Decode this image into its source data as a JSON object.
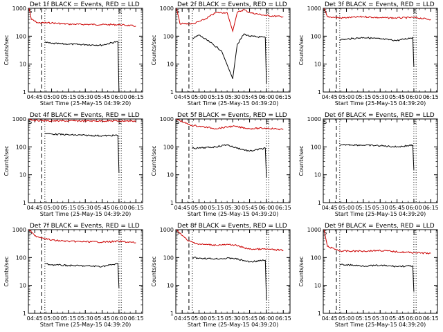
{
  "chart_data": [
    {
      "type": "line",
      "title": "Det 1f BLACK = Events, RED = LLD",
      "xlabel": "Start Time (25-May-15 04:39:20)",
      "ylabel": "Counts/sec",
      "xticks": [
        "04:45",
        "05:00",
        "05:15",
        "05:30",
        "05:45",
        "06:00",
        "06:15"
      ],
      "yticks": [
        "1",
        "10",
        "100",
        "1000"
      ],
      "ylog": true,
      "ylim": [
        1,
        1000
      ],
      "markers": {
        "S": "04:40",
        "E": "06:00"
      },
      "dashed_at": "04:51",
      "dotted_at": [
        "04:54",
        "06:00",
        "06:02"
      ],
      "series": [
        {
          "color": "#cc0000",
          "points": [
            [
              "04:40",
              1000
            ],
            [
              "04:42",
              400
            ],
            [
              "04:48",
              300
            ],
            [
              "05:00",
              300
            ],
            [
              "05:15",
              270
            ],
            [
              "05:30",
              265
            ],
            [
              "05:45",
              260
            ],
            [
              "06:00",
              260
            ],
            [
              "06:15",
              230
            ]
          ]
        },
        {
          "color": "#000000",
          "points": [
            [
              "04:54",
              60
            ],
            [
              "05:00",
              55
            ],
            [
              "05:15",
              52
            ],
            [
              "05:30",
              50
            ],
            [
              "05:45",
              48
            ],
            [
              "05:59",
              65
            ],
            [
              "06:00",
              1
            ]
          ]
        }
      ]
    },
    {
      "type": "line",
      "title": "Det 2f BLACK = Events, RED = LLD",
      "xlabel": "Start Time (25-May-15 04:39:20)",
      "ylabel": "Counts/sec",
      "xticks": [
        "04:45",
        "05:00",
        "05:15",
        "05:30",
        "05:45",
        "06:00",
        "06:15"
      ],
      "yticks": [
        "1",
        "10",
        "100",
        "1000"
      ],
      "ylog": true,
      "ylim": [
        1,
        1000
      ],
      "markers": {
        "S": "04:40",
        "E": "06:00"
      },
      "dashed_at": "04:51",
      "dotted_at": [
        "04:54",
        "06:00",
        "06:02"
      ],
      "series": [
        {
          "color": "#cc0000",
          "points": [
            [
              "04:40",
              1000
            ],
            [
              "04:43",
              280
            ],
            [
              "04:55",
              280
            ],
            [
              "05:05",
              400
            ],
            [
              "05:15",
              700
            ],
            [
              "05:25",
              700
            ],
            [
              "05:30",
              150
            ],
            [
              "05:34",
              700
            ],
            [
              "05:40",
              900
            ],
            [
              "05:45",
              700
            ],
            [
              "06:00",
              550
            ],
            [
              "06:15",
              500
            ]
          ]
        },
        {
          "color": "#000000",
          "points": [
            [
              "04:54",
              80
            ],
            [
              "05:00",
              110
            ],
            [
              "05:10",
              60
            ],
            [
              "05:20",
              30
            ],
            [
              "05:30",
              3
            ],
            [
              "05:34",
              50
            ],
            [
              "05:40",
              120
            ],
            [
              "05:45",
              100
            ],
            [
              "05:59",
              90
            ],
            [
              "06:00",
              2
            ]
          ]
        }
      ]
    },
    {
      "type": "line",
      "title": "Det 3f BLACK = Events, RED = LLD",
      "xlabel": "Start Time (25-May-15 04:39:20)",
      "ylabel": "Counts/sec",
      "xticks": [
        "04:45",
        "05:00",
        "05:15",
        "05:30",
        "05:45",
        "06:00",
        "06:15"
      ],
      "yticks": [
        "1",
        "10",
        "100",
        "1000"
      ],
      "ylog": true,
      "ylim": [
        1,
        1000
      ],
      "markers": {
        "S": "04:40",
        "E": "06:00"
      },
      "dashed_at": "04:51",
      "dotted_at": [
        "04:54",
        "06:00",
        "06:02"
      ],
      "series": [
        {
          "color": "#cc0000",
          "points": [
            [
              "04:40",
              1000
            ],
            [
              "04:43",
              500
            ],
            [
              "04:55",
              450
            ],
            [
              "05:15",
              500
            ],
            [
              "05:30",
              460
            ],
            [
              "05:45",
              450
            ],
            [
              "06:00",
              470
            ],
            [
              "06:15",
              400
            ]
          ]
        },
        {
          "color": "#000000",
          "points": [
            [
              "04:54",
              75
            ],
            [
              "05:00",
              78
            ],
            [
              "05:15",
              90
            ],
            [
              "05:30",
              80
            ],
            [
              "05:45",
              70
            ],
            [
              "05:59",
              90
            ],
            [
              "06:00",
              8
            ]
          ]
        }
      ]
    },
    {
      "type": "line",
      "title": "Det 4f BLACK = Events, RED = LLD",
      "xlabel": "Start Time (25-May-15 04:39:20)",
      "ylabel": "Counts/sec",
      "xticks": [
        "04:45",
        "05:00",
        "05:15",
        "05:30",
        "05:45",
        "06:00",
        "06:15"
      ],
      "yticks": [
        "1",
        "10",
        "100",
        "1000"
      ],
      "ylog": true,
      "ylim": [
        1,
        1000
      ],
      "markers": {
        "S": "04:40",
        "E": "06:00"
      },
      "dashed_at": "04:51",
      "dotted_at": [
        "04:54",
        "06:00",
        "06:02"
      ],
      "series": [
        {
          "color": "#cc0000",
          "points": [
            [
              "04:40",
              1000
            ],
            [
              "04:44",
              900
            ],
            [
              "05:00",
              850
            ],
            [
              "05:15",
              850
            ],
            [
              "05:30",
              850
            ],
            [
              "05:45",
              850
            ],
            [
              "06:00",
              850
            ],
            [
              "06:15",
              850
            ]
          ]
        },
        {
          "color": "#000000",
          "points": [
            [
              "04:54",
              300
            ],
            [
              "05:00",
              290
            ],
            [
              "05:15",
              270
            ],
            [
              "05:30",
              260
            ],
            [
              "05:45",
              250
            ],
            [
              "05:59",
              260
            ],
            [
              "06:00",
              12
            ]
          ]
        }
      ]
    },
    {
      "type": "line",
      "title": "Det 5f BLACK = Events, RED = LLD",
      "xlabel": "Start Time (25-May-15 04:39:20)",
      "ylabel": "Counts/sec",
      "xticks": [
        "04:45",
        "05:00",
        "05:15",
        "05:30",
        "05:45",
        "06:00",
        "06:15"
      ],
      "yticks": [
        "1",
        "10",
        "100",
        "1000"
      ],
      "ylog": true,
      "ylim": [
        1,
        1000
      ],
      "markers": {
        "S": "04:40",
        "E": "06:00"
      },
      "dashed_at": "04:51",
      "dotted_at": [
        "04:54",
        "06:00",
        "06:02"
      ],
      "series": [
        {
          "color": "#cc0000",
          "points": [
            [
              "04:40",
              1000
            ],
            [
              "04:52",
              600
            ],
            [
              "05:00",
              550
            ],
            [
              "05:15",
              450
            ],
            [
              "05:30",
              550
            ],
            [
              "05:45",
              450
            ],
            [
              "06:00",
              470
            ],
            [
              "06:15",
              420
            ]
          ]
        },
        {
          "color": "#000000",
          "points": [
            [
              "04:54",
              90
            ],
            [
              "05:00",
              90
            ],
            [
              "05:15",
              100
            ],
            [
              "05:25",
              120
            ],
            [
              "05:30",
              100
            ],
            [
              "05:45",
              70
            ],
            [
              "05:59",
              90
            ],
            [
              "06:00",
              8
            ]
          ]
        }
      ]
    },
    {
      "type": "line",
      "title": "Det 6f BLACK = Events, RED = LLD",
      "xlabel": "Start Time (25-May-15 04:39:20)",
      "ylabel": "Counts/sec",
      "xticks": [
        "04:45",
        "05:00",
        "05:15",
        "05:30",
        "05:45",
        "06:00",
        "06:15"
      ],
      "yticks": [
        "1",
        "10",
        "100",
        "1000"
      ],
      "ylog": true,
      "ylim": [
        1,
        1000
      ],
      "markers": {
        "S": "04:40",
        "E": "06:00"
      },
      "dashed_at": "04:51",
      "dotted_at": [
        "04:54",
        "06:00",
        "06:02"
      ],
      "series": [
        {
          "color": "#000000",
          "points": [
            [
              "04:54",
              110
            ],
            [
              "05:00",
              120
            ],
            [
              "05:15",
              115
            ],
            [
              "05:30",
              110
            ],
            [
              "05:45",
              100
            ],
            [
              "05:59",
              115
            ],
            [
              "06:00",
              15
            ]
          ]
        }
      ]
    },
    {
      "type": "line",
      "title": "Det 7f BLACK = Events, RED = LLD",
      "xlabel": "Start Time (25-May-15 04:39:20)",
      "ylabel": "Counts/sec",
      "xticks": [
        "04:45",
        "05:00",
        "05:15",
        "05:30",
        "05:45",
        "06:00",
        "06:15"
      ],
      "yticks": [
        "1",
        "10",
        "100",
        "1000"
      ],
      "ylog": true,
      "ylim": [
        1,
        1000
      ],
      "markers": {
        "S": "04:40",
        "E": "06:00"
      },
      "dashed_at": "04:51",
      "dotted_at": [
        "04:54",
        "06:00",
        "06:02"
      ],
      "series": [
        {
          "color": "#cc0000",
          "points": [
            [
              "04:40",
              1000
            ],
            [
              "04:45",
              600
            ],
            [
              "05:00",
              420
            ],
            [
              "05:15",
              380
            ],
            [
              "05:30",
              370
            ],
            [
              "05:45",
              360
            ],
            [
              "06:00",
              380
            ],
            [
              "06:15",
              340
            ]
          ]
        },
        {
          "color": "#000000",
          "points": [
            [
              "04:54",
              60
            ],
            [
              "05:00",
              55
            ],
            [
              "05:15",
              52
            ],
            [
              "05:30",
              50
            ],
            [
              "05:45",
              48
            ],
            [
              "05:59",
              60
            ],
            [
              "06:00",
              8
            ]
          ]
        }
      ]
    },
    {
      "type": "line",
      "title": "Det 8f BLACK = Events, RED = LLD",
      "xlabel": "Start Time (25-May-15 04:39:20)",
      "ylabel": "Counts/sec",
      "xticks": [
        "04:45",
        "05:00",
        "05:15",
        "05:30",
        "05:45",
        "06:00",
        "06:15"
      ],
      "yticks": [
        "1",
        "10",
        "100",
        "1000"
      ],
      "ylog": true,
      "ylim": [
        1,
        1000
      ],
      "markers": {
        "S": "04:40",
        "E": "06:00"
      },
      "dashed_at": "04:51",
      "dotted_at": [
        "04:54",
        "06:00",
        "06:02"
      ],
      "series": [
        {
          "color": "#cc0000",
          "points": [
            [
              "04:40",
              1000
            ],
            [
              "04:50",
              400
            ],
            [
              "05:00",
              300
            ],
            [
              "05:15",
              280
            ],
            [
              "05:30",
              290
            ],
            [
              "05:45",
              200
            ],
            [
              "06:00",
              200
            ],
            [
              "06:15",
              180
            ]
          ]
        },
        {
          "color": "#000000",
          "points": [
            [
              "04:54",
              100
            ],
            [
              "05:00",
              95
            ],
            [
              "05:15",
              90
            ],
            [
              "05:30",
              95
            ],
            [
              "05:45",
              70
            ],
            [
              "05:59",
              80
            ],
            [
              "06:00",
              3
            ]
          ]
        }
      ]
    },
    {
      "type": "line",
      "title": "Det 9f BLACK = Events, RED = LLD",
      "xlabel": "Start Time (25-May-15 04:39:20)",
      "ylabel": "Counts/sec",
      "xticks": [
        "04:45",
        "05:00",
        "05:15",
        "05:30",
        "05:45",
        "06:00",
        "06:15"
      ],
      "yticks": [
        "1",
        "10",
        "100",
        "1000"
      ],
      "ylog": true,
      "ylim": [
        1,
        1000
      ],
      "markers": {
        "S": "04:40",
        "E": "06:00"
      },
      "dashed_at": "04:51",
      "dotted_at": [
        "04:54",
        "06:00",
        "06:02"
      ],
      "series": [
        {
          "color": "#cc0000",
          "points": [
            [
              "04:40",
              1000
            ],
            [
              "04:43",
              250
            ],
            [
              "04:55",
              170
            ],
            [
              "05:15",
              170
            ],
            [
              "05:30",
              180
            ],
            [
              "05:45",
              160
            ],
            [
              "06:00",
              150
            ],
            [
              "06:15",
              140
            ]
          ]
        },
        {
          "color": "#000000",
          "points": [
            [
              "04:54",
              55
            ],
            [
              "05:00",
              55
            ],
            [
              "05:15",
              50
            ],
            [
              "05:30",
              52
            ],
            [
              "05:45",
              48
            ],
            [
              "05:59",
              50
            ],
            [
              "06:00",
              6
            ]
          ]
        }
      ]
    }
  ]
}
